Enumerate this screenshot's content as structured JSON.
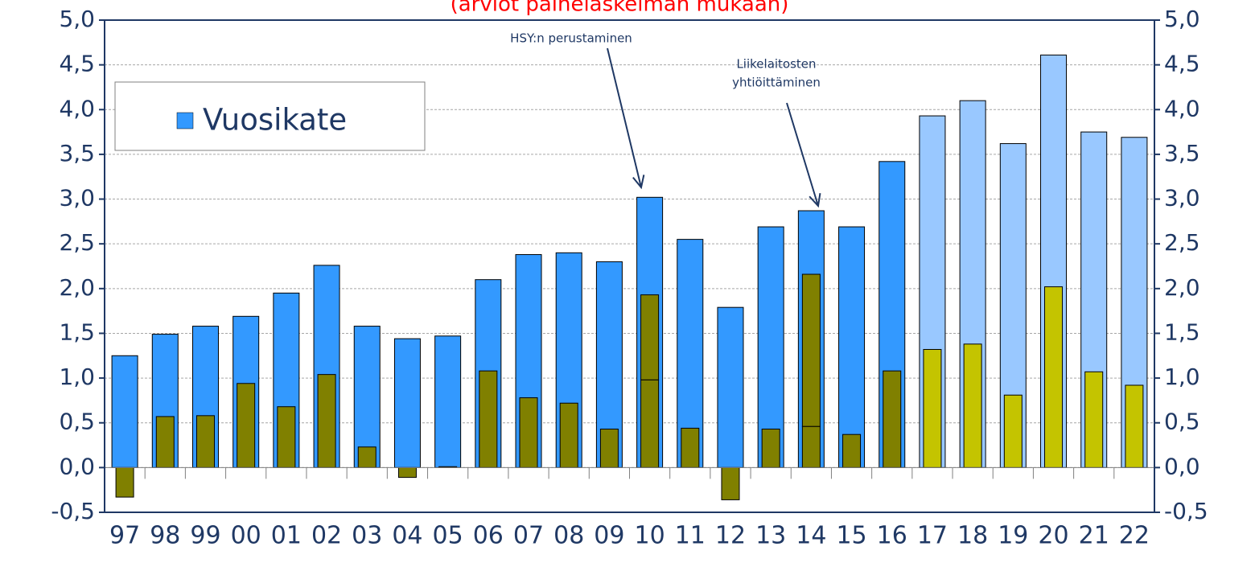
{
  "chart_data": {
    "type": "bar",
    "subtitle": "(arviot painelaskelman mukaan)",
    "categories": [
      "97",
      "98",
      "99",
      "00",
      "01",
      "02",
      "03",
      "04",
      "05",
      "06",
      "07",
      "08",
      "09",
      "10",
      "11",
      "12",
      "13",
      "14",
      "15",
      "16",
      "17",
      "18",
      "19",
      "20",
      "21",
      "22"
    ],
    "series": [
      {
        "name": "Vuosikate",
        "color": "#3399ff",
        "colors": [
          "#3399ff",
          "#3399ff",
          "#3399ff",
          "#3399ff",
          "#3399ff",
          "#3399ff",
          "#3399ff",
          "#3399ff",
          "#3399ff",
          "#3399ff",
          "#3399ff",
          "#3399ff",
          "#3399ff",
          "#3399ff",
          "#3399ff",
          "#3399ff",
          "#3399ff",
          "#3399ff",
          "#3399ff",
          "#3399ff",
          "#99c8ff",
          "#99c8ff",
          "#99c8ff",
          "#99c8ff",
          "#99c8ff",
          "#99c8ff"
        ],
        "values": [
          1.25,
          1.49,
          1.58,
          1.69,
          1.95,
          2.26,
          1.58,
          1.44,
          1.47,
          2.1,
          2.38,
          2.4,
          2.3,
          3.02,
          2.55,
          1.79,
          2.69,
          2.87,
          2.69,
          3.42,
          3.93,
          4.1,
          3.62,
          4.61,
          3.75,
          3.69
        ]
      },
      {
        "color": "#808000",
        "colors": [
          "#808000",
          "#808000",
          "#808000",
          "#808000",
          "#808000",
          "#808000",
          "#808000",
          "#808000",
          "#808000",
          "#808000",
          "#808000",
          "#808000",
          "#808000",
          "#808000",
          "#808000",
          "#808000",
          "#808000",
          "#808000",
          "#808000",
          "#808000",
          "#c4c400",
          "#c4c400",
          "#c4c400",
          "#c4c400",
          "#c4c400",
          "#c4c400"
        ],
        "values": [
          -0.33,
          0.57,
          0.58,
          0.94,
          0.68,
          1.04,
          0.23,
          -0.11,
          0.01,
          1.08,
          0.78,
          0.72,
          0.43,
          0.98,
          0.44,
          -0.36,
          0.43,
          0.46,
          0.37,
          1.08,
          1.32,
          1.38,
          0.81,
          2.02,
          1.07,
          0.92
        ]
      },
      {
        "color": "#808000",
        "stacked_on": 1,
        "values": [
          null,
          null,
          null,
          null,
          null,
          null,
          null,
          null,
          null,
          null,
          null,
          null,
          null,
          0.95,
          null,
          null,
          null,
          1.7,
          null,
          null,
          null,
          null,
          null,
          null,
          null,
          null
        ]
      }
    ],
    "ylim": [
      -0.5,
      5.0
    ],
    "yticks": [
      {
        "value": -0.5,
        "label": "-0,5"
      },
      {
        "value": 0,
        "label": "0,0"
      },
      {
        "value": 0.5,
        "label": "0,5"
      },
      {
        "value": 1,
        "label": "1,0"
      },
      {
        "value": 1.5,
        "label": "1,5"
      },
      {
        "value": 2,
        "label": "2,0"
      },
      {
        "value": 2.5,
        "label": "2,5"
      },
      {
        "value": 3,
        "label": "3,0"
      },
      {
        "value": 3.5,
        "label": "3,5"
      },
      {
        "value": 4,
        "label": "4,0"
      },
      {
        "value": 4.5,
        "label": "4,5"
      },
      {
        "value": 5,
        "label": "5,0"
      }
    ],
    "y2lim": [
      -0.5,
      5.0
    ],
    "y2ticks": [
      {
        "value": -0.5,
        "label": "-0,5"
      },
      {
        "value": 0,
        "label": "0,0"
      },
      {
        "value": 0.5,
        "label": "0,5"
      },
      {
        "value": 1,
        "label": "1,0"
      },
      {
        "value": 1.5,
        "label": "1,5"
      },
      {
        "value": 2,
        "label": "2,0"
      },
      {
        "value": 2.5,
        "label": "2,5"
      },
      {
        "value": 3,
        "label": "3,0"
      },
      {
        "value": 3.5,
        "label": "3,5"
      },
      {
        "value": 4,
        "label": "4,0"
      },
      {
        "value": 4.5,
        "label": "4,5"
      },
      {
        "value": 5,
        "label": "5,0"
      }
    ],
    "grid": true,
    "legend": "upper-left",
    "annotations": [
      {
        "lines": [
          "HSY:n perustaminen"
        ],
        "category": 13
      },
      {
        "lines": [
          "Liikelaitosten",
          "yhtiöittäminen"
        ],
        "category": 17
      }
    ]
  }
}
